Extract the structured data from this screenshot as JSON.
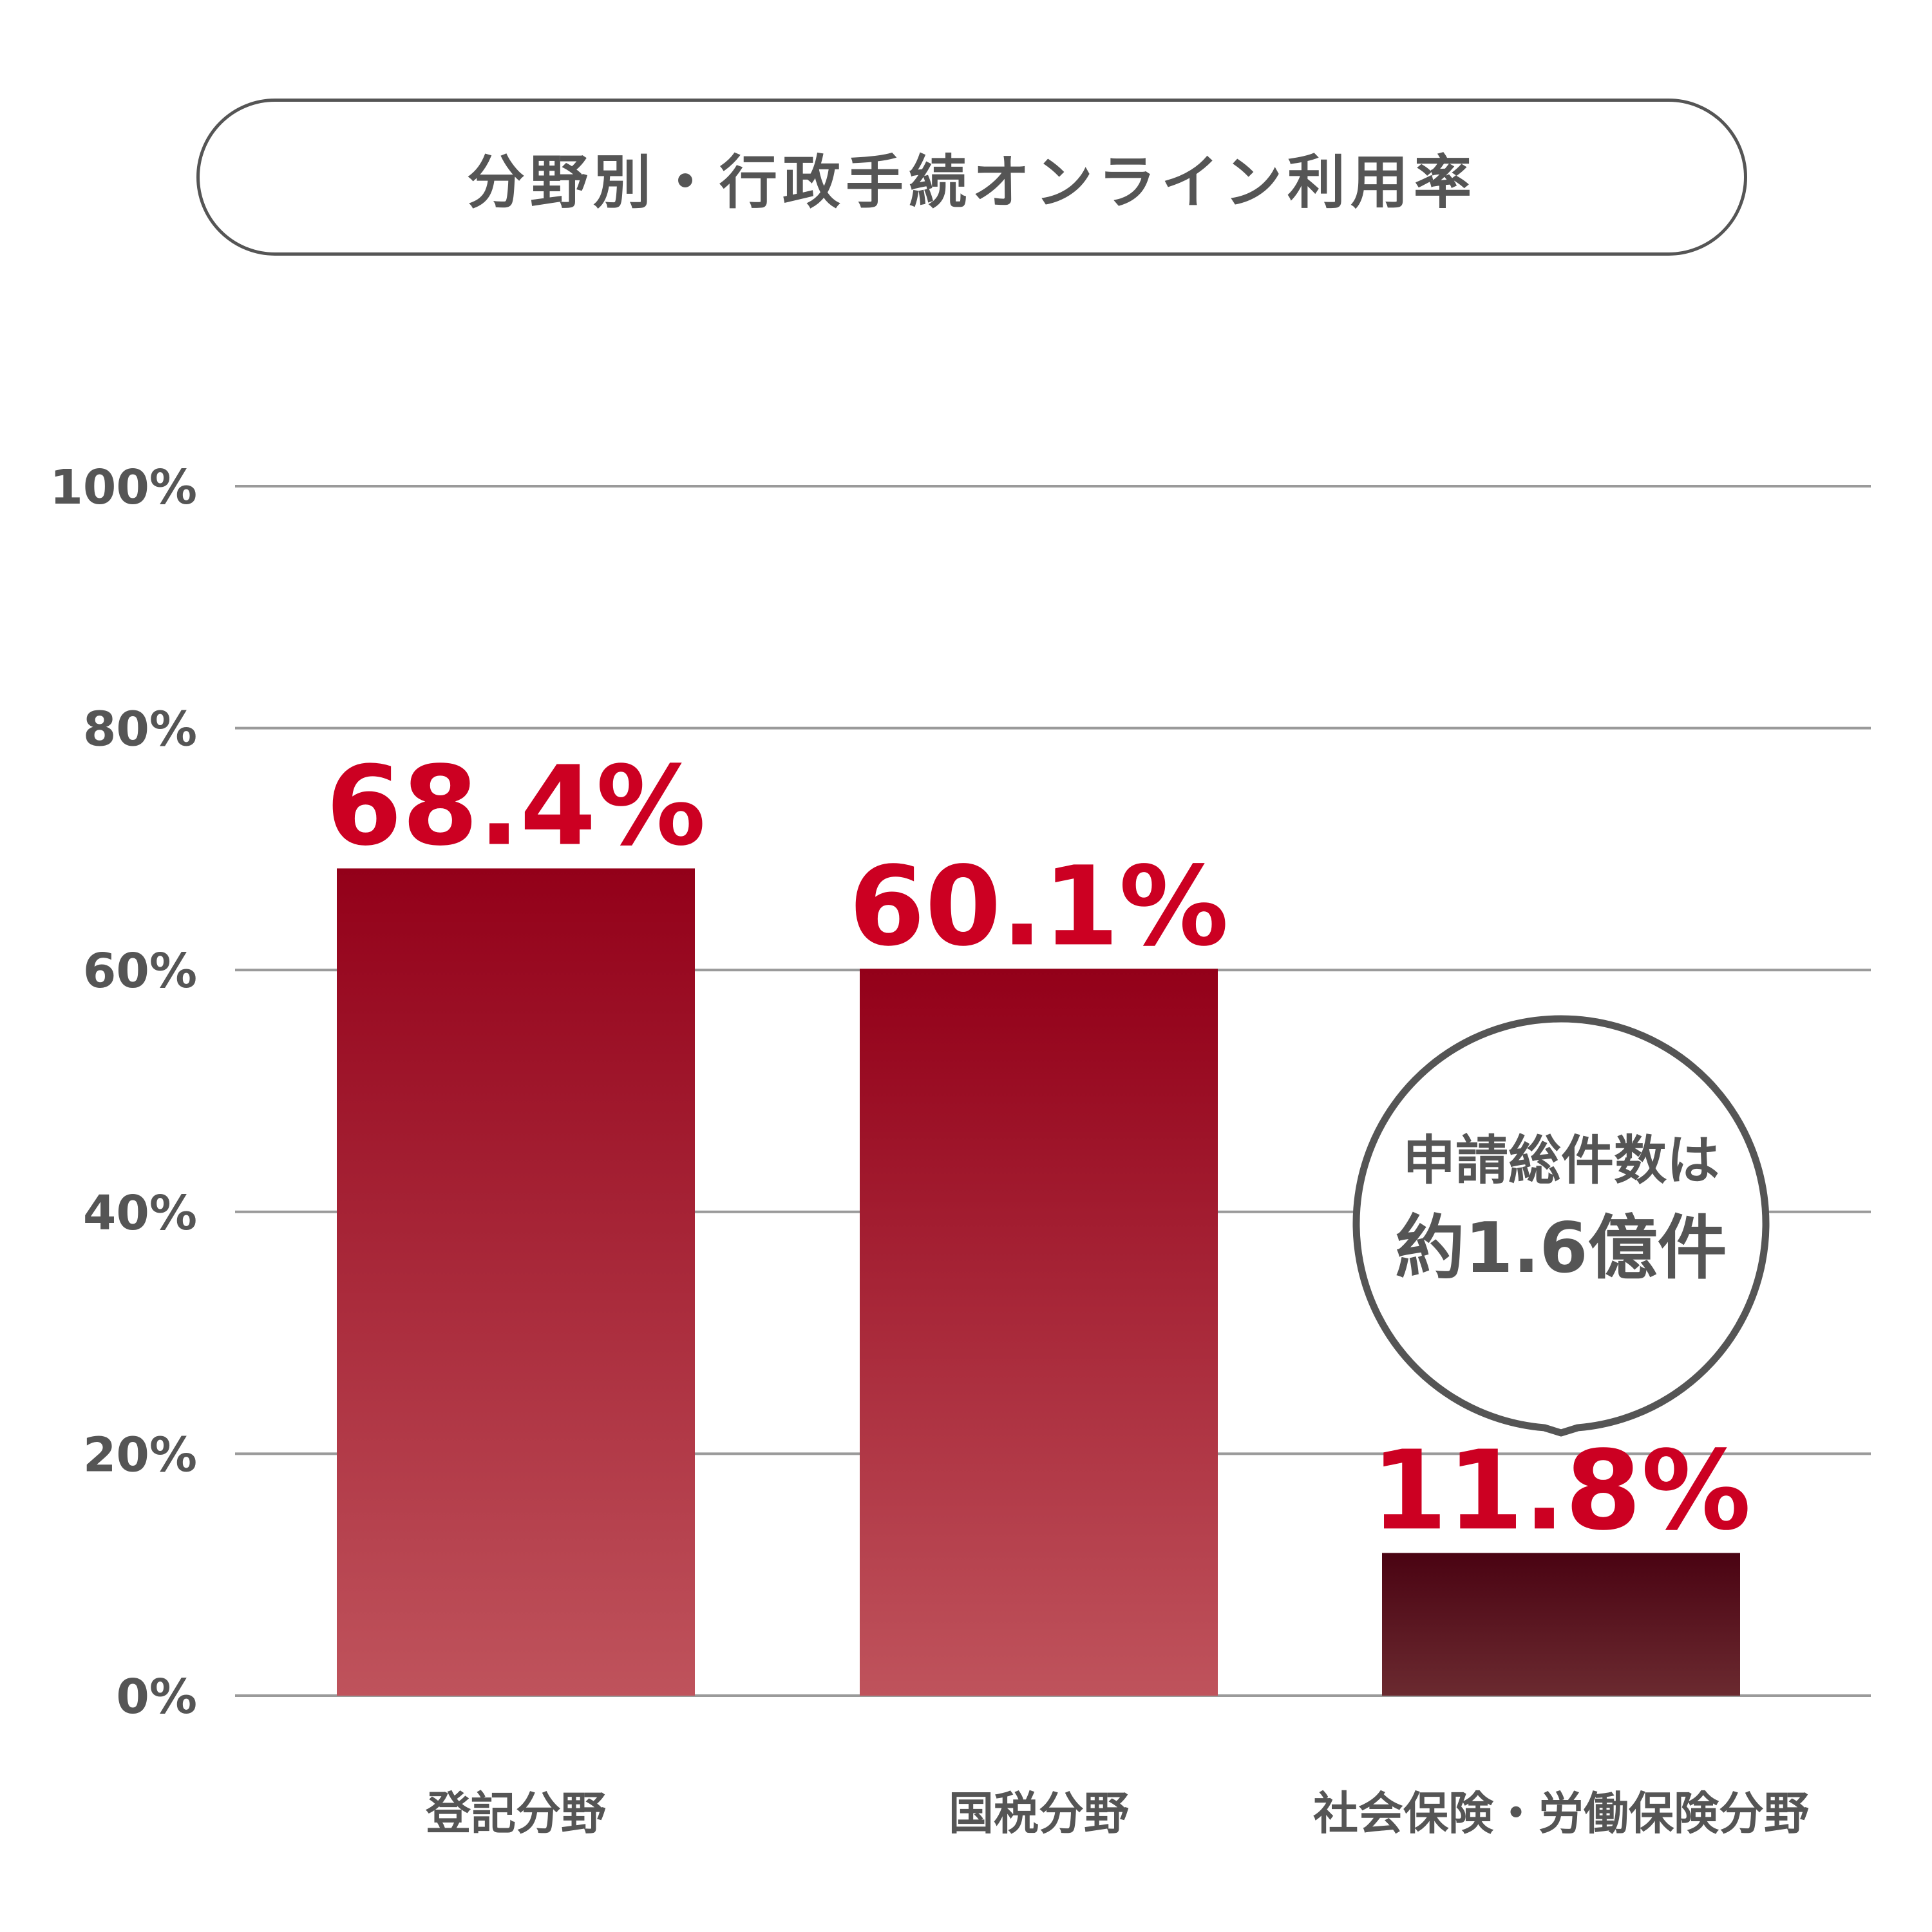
{
  "chart_data": {
    "type": "bar",
    "title": "分野別・行政手続オンライン利用率",
    "categories": [
      "登記分野",
      "国税分野",
      "社会保険・労働保険分野"
    ],
    "values": [
      68.4,
      60.1,
      11.8
    ],
    "value_labels": [
      "68.4%",
      "60.1%",
      "11.8%"
    ],
    "ylim": [
      0,
      100
    ],
    "y_ticks": [
      0,
      20,
      40,
      60,
      80,
      100
    ],
    "y_tick_labels": [
      "0%",
      "20%",
      "40%",
      "60%",
      "80%",
      "100%"
    ],
    "grid": true,
    "annotation": {
      "category": "社会保険・労働保険分野",
      "line1": "申請総件数は",
      "line2": "約1.6億件"
    }
  },
  "colors": {
    "bar_top": "#930019",
    "bar_bottom": "#bf535c",
    "highlight_top": "#4a0312",
    "highlight_bottom": "#6b2a30",
    "value_label": "#cc0022",
    "text": "#555555",
    "grid": "#9a9a9a"
  }
}
